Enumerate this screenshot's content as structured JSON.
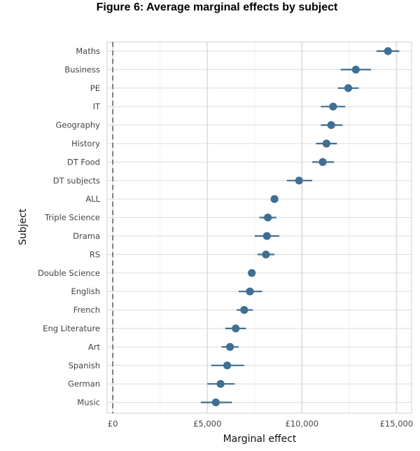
{
  "chart_data": {
    "type": "scatter",
    "title": "Figure 6: Average marginal effects by subject",
    "xlabel": "Marginal effect",
    "ylabel": "Subject",
    "xlim": [
      -300,
      15800
    ],
    "x_ticks": [
      0,
      5000,
      10000,
      15000
    ],
    "x_tick_labels": [
      "£0",
      "£5,000",
      "£10,000",
      "£15,000"
    ],
    "reference_line_x": 0,
    "grid": true,
    "point_color": "#3f6f91",
    "points": [
      {
        "subject": "Maths",
        "estimate": 14550,
        "lower": 13950,
        "upper": 15150
      },
      {
        "subject": "Business",
        "estimate": 12850,
        "lower": 12050,
        "upper": 13650
      },
      {
        "subject": "PE",
        "estimate": 12450,
        "lower": 11900,
        "upper": 13000
      },
      {
        "subject": "IT",
        "estimate": 11650,
        "lower": 11000,
        "upper": 12300
      },
      {
        "subject": "Geography",
        "estimate": 11550,
        "lower": 11000,
        "upper": 12150
      },
      {
        "subject": "History",
        "estimate": 11300,
        "lower": 10750,
        "upper": 11850
      },
      {
        "subject": "DT Food",
        "estimate": 11100,
        "lower": 10550,
        "upper": 11700
      },
      {
        "subject": "DT subjects",
        "estimate": 9850,
        "lower": 9200,
        "upper": 10550
      },
      {
        "subject": "ALL",
        "estimate": 8550,
        "lower": 8500,
        "upper": 8600
      },
      {
        "subject": "Triple Science",
        "estimate": 8200,
        "lower": 7750,
        "upper": 8650
      },
      {
        "subject": "Drama",
        "estimate": 8150,
        "lower": 7500,
        "upper": 8800
      },
      {
        "subject": "RS",
        "estimate": 8100,
        "lower": 7650,
        "upper": 8550
      },
      {
        "subject": "Double Science",
        "estimate": 7350,
        "lower": 7150,
        "upper": 7550
      },
      {
        "subject": "English",
        "estimate": 7250,
        "lower": 6650,
        "upper": 7900
      },
      {
        "subject": "French",
        "estimate": 6950,
        "lower": 6550,
        "upper": 7400
      },
      {
        "subject": "Eng Literature",
        "estimate": 6500,
        "lower": 5950,
        "upper": 7050
      },
      {
        "subject": "Art",
        "estimate": 6200,
        "lower": 5750,
        "upper": 6650
      },
      {
        "subject": "Spanish",
        "estimate": 6050,
        "lower": 5200,
        "upper": 6950
      },
      {
        "subject": "German",
        "estimate": 5700,
        "lower": 5000,
        "upper": 6450
      },
      {
        "subject": "Music",
        "estimate": 5450,
        "lower": 4650,
        "upper": 6300
      }
    ]
  }
}
